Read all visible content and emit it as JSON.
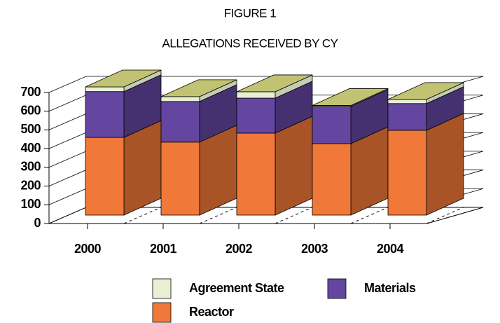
{
  "chart_data": {
    "type": "bar3d_stacked",
    "title": "FIGURE 1",
    "subtitle": "ALLEGATIONS RECEIVED BY CY",
    "categories": [
      "2000",
      "2001",
      "2002",
      "2003",
      "2004"
    ],
    "series": [
      {
        "name": "Reactor",
        "color": "#f07838",
        "values": [
          415,
          390,
          438,
          382,
          453
        ]
      },
      {
        "name": "Materials",
        "color": "#6446a0",
        "values": [
          245,
          217,
          187,
          199,
          143
        ]
      },
      {
        "name": "Agreement State",
        "color": "#e8f0d4",
        "values": [
          25,
          26,
          34,
          5,
          22
        ]
      }
    ],
    "ylim": [
      0,
      700
    ],
    "yticks": [
      0,
      100,
      200,
      300,
      400,
      500,
      600,
      700
    ],
    "grid": true
  }
}
